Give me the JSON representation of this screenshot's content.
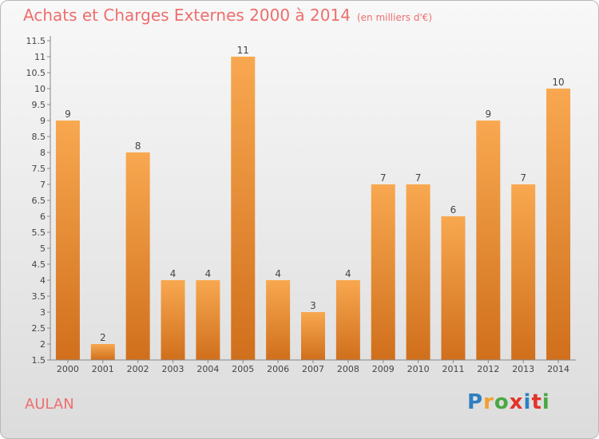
{
  "header": {
    "title": "Achats et Charges Externes 2000 à 2014",
    "unit": "(en milliers d'€)"
  },
  "footer": {
    "place": "AULAN",
    "brand": "Proxiti",
    "brand_colors": [
      "#2f7fc1",
      "#f0a030",
      "#4aa843",
      "#e2332b",
      "#2f7fc1",
      "#e2332b",
      "#4aa843"
    ]
  },
  "colors": {
    "bar_top": "#f8a850",
    "bar_bottom": "#d06f1c",
    "title": "#ee6e6e",
    "axis": "#888888",
    "text": "#444444"
  },
  "chart_data": {
    "type": "bar",
    "title": "Achats et Charges Externes 2000 à 2014",
    "subtitle": "(en milliers d'€)",
    "xlabel": "",
    "ylabel": "",
    "categories": [
      "2000",
      "2001",
      "2002",
      "2003",
      "2004",
      "2005",
      "2006",
      "2007",
      "2008",
      "2009",
      "2010",
      "2011",
      "2012",
      "2013",
      "2014"
    ],
    "values": [
      9,
      2,
      8,
      4,
      4,
      11,
      4,
      3,
      4,
      7,
      7,
      6,
      9,
      7,
      10
    ],
    "ylim": [
      1.5,
      11.5
    ],
    "yticks": [
      "1.5",
      "2",
      "2.5",
      "3",
      "3.5",
      "4",
      "4.5",
      "5",
      "5.5",
      "6",
      "6.5",
      "7",
      "7.5",
      "8",
      "8.5",
      "9",
      "9.5",
      "10",
      "10.5",
      "11",
      "11.5"
    ],
    "grid": false,
    "legend": "none"
  }
}
